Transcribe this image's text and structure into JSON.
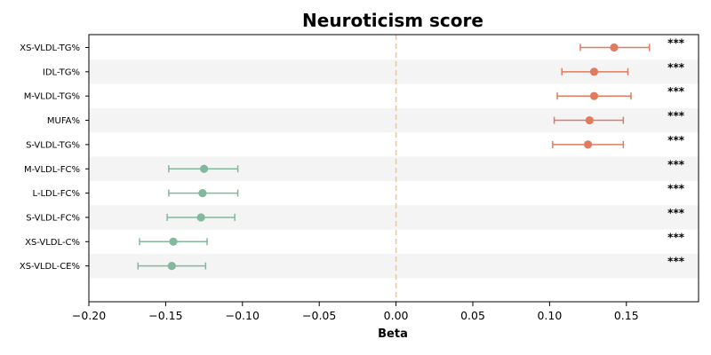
{
  "chart_data": {
    "type": "forest",
    "title": "Neuroticism score",
    "xlabel": "Beta",
    "ylabel": "",
    "xlim": [
      -0.2,
      0.197
    ],
    "x_ticks": [
      -0.2,
      -0.15,
      -0.1,
      -0.05,
      0.0,
      0.05,
      0.1,
      0.15
    ],
    "x_tick_labels": [
      "−0.20",
      "−0.15",
      "−0.10",
      "−0.05",
      "0.00",
      "0.05",
      "0.10",
      "0.15"
    ],
    "reference_line": 0.0,
    "grid": false,
    "row_shading": "alternating",
    "colors": {
      "positive": "#e07b5f",
      "negative": "#82b89b",
      "reference_line": "#f0c987",
      "shade": "#f4f4f4"
    },
    "rows": [
      {
        "label": "XS-VLDL-TG%",
        "beta": 0.142,
        "ci": [
          0.12,
          0.165
        ],
        "sig": "***"
      },
      {
        "label": "IDL-TG%",
        "beta": 0.129,
        "ci": [
          0.108,
          0.151
        ],
        "sig": "***"
      },
      {
        "label": "M-VLDL-TG%",
        "beta": 0.129,
        "ci": [
          0.105,
          0.153
        ],
        "sig": "***"
      },
      {
        "label": "MUFA%",
        "beta": 0.126,
        "ci": [
          0.103,
          0.148
        ],
        "sig": "***"
      },
      {
        "label": "S-VLDL-TG%",
        "beta": 0.125,
        "ci": [
          0.102,
          0.148
        ],
        "sig": "***"
      },
      {
        "label": "M-VLDL-FC%",
        "beta": -0.125,
        "ci": [
          -0.148,
          -0.103
        ],
        "sig": "***"
      },
      {
        "label": "L-LDL-FC%",
        "beta": -0.126,
        "ci": [
          -0.148,
          -0.103
        ],
        "sig": "***"
      },
      {
        "label": "S-VLDL-FC%",
        "beta": -0.127,
        "ci": [
          -0.149,
          -0.105
        ],
        "sig": "***"
      },
      {
        "label": "XS-VLDL-C%",
        "beta": -0.145,
        "ci": [
          -0.167,
          -0.123
        ],
        "sig": "***"
      },
      {
        "label": "XS-VLDL-CE%",
        "beta": -0.146,
        "ci": [
          -0.168,
          -0.124
        ],
        "sig": "***"
      }
    ]
  }
}
